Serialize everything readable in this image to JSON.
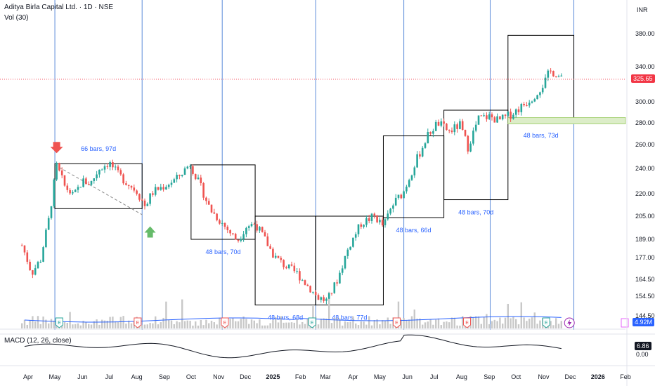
{
  "header": {
    "symbol_line": "Aditya Birla Capital Ltd. · 1D · NSE",
    "vol_line": "Vol (30)",
    "macd_line": "MACD (12, 26, close)",
    "currency": "INR"
  },
  "tags": {
    "last_price": "325.65",
    "volume": "4.92M",
    "macd": "6.86",
    "macd_zero": "0.00"
  },
  "colors": {
    "up": "#26a69a",
    "down": "#ef5350",
    "vline": "#5b8bd9",
    "box": "#000000",
    "price_tag": "#f23645",
    "vol_tag": "#2962ff",
    "zone": "#dcedc8"
  },
  "icons": [
    "down-arrow-red",
    "up-arrow-green",
    "earnings-markers",
    "lightning-icon"
  ],
  "chart_data": {
    "type": "candlestick",
    "price_axis_ticks": [
      "380.00",
      "340.00",
      "300.00",
      "280.00",
      "260.00",
      "240.00",
      "220.00",
      "205.00",
      "189.00",
      "177.00",
      "164.50",
      "154.50",
      "144.50"
    ],
    "x_axis_ticks": [
      "Apr",
      "May",
      "Jun",
      "Jul",
      "Aug",
      "Sep",
      "Oct",
      "Nov",
      "Dec",
      "2025",
      "Feb",
      "Mar",
      "Apr",
      "May",
      "Jun",
      "Jul",
      "Aug",
      "Sep",
      "Oct",
      "Nov",
      "Dec",
      "2026",
      "Feb"
    ],
    "last_price": 325.65,
    "close_series": [
      {
        "date": "2024-03-25",
        "close": 185
      },
      {
        "date": "2024-04-05",
        "close": 168
      },
      {
        "date": "2024-04-15",
        "close": 176
      },
      {
        "date": "2024-04-25",
        "close": 205
      },
      {
        "date": "2024-05-03",
        "close": 242
      },
      {
        "date": "2024-05-12",
        "close": 226
      },
      {
        "date": "2024-05-22",
        "close": 218
      },
      {
        "date": "2024-06-01",
        "close": 230
      },
      {
        "date": "2024-06-10",
        "close": 228
      },
      {
        "date": "2024-06-20",
        "close": 240
      },
      {
        "date": "2024-07-01",
        "close": 245
      },
      {
        "date": "2024-07-10",
        "close": 236
      },
      {
        "date": "2024-07-22",
        "close": 228
      },
      {
        "date": "2024-08-01",
        "close": 222
      },
      {
        "date": "2024-08-10",
        "close": 212
      },
      {
        "date": "2024-08-20",
        "close": 222
      },
      {
        "date": "2024-09-01",
        "close": 226
      },
      {
        "date": "2024-09-15",
        "close": 232
      },
      {
        "date": "2024-09-30",
        "close": 244
      },
      {
        "date": "2024-10-10",
        "close": 228
      },
      {
        "date": "2024-10-22",
        "close": 210
      },
      {
        "date": "2024-11-01",
        "close": 203
      },
      {
        "date": "2024-11-12",
        "close": 195
      },
      {
        "date": "2024-11-22",
        "close": 188
      },
      {
        "date": "2024-12-02",
        "close": 198
      },
      {
        "date": "2024-12-12",
        "close": 200
      },
      {
        "date": "2024-12-22",
        "close": 190
      },
      {
        "date": "2025-01-02",
        "close": 178
      },
      {
        "date": "2025-01-15",
        "close": 172
      },
      {
        "date": "2025-01-28",
        "close": 168
      },
      {
        "date": "2025-02-10",
        "close": 160
      },
      {
        "date": "2025-02-20",
        "close": 154
      },
      {
        "date": "2025-03-03",
        "close": 152
      },
      {
        "date": "2025-03-15",
        "close": 165
      },
      {
        "date": "2025-03-28",
        "close": 185
      },
      {
        "date": "2025-04-10",
        "close": 200
      },
      {
        "date": "2025-04-25",
        "close": 205
      },
      {
        "date": "2025-05-05",
        "close": 198
      },
      {
        "date": "2025-05-15",
        "close": 212
      },
      {
        "date": "2025-05-28",
        "close": 222
      },
      {
        "date": "2025-06-10",
        "close": 245
      },
      {
        "date": "2025-06-25",
        "close": 270
      },
      {
        "date": "2025-07-05",
        "close": 280
      },
      {
        "date": "2025-07-18",
        "close": 272
      },
      {
        "date": "2025-07-30",
        "close": 278
      },
      {
        "date": "2025-08-08",
        "close": 258
      },
      {
        "date": "2025-08-20",
        "close": 284
      },
      {
        "date": "2025-09-01",
        "close": 286
      },
      {
        "date": "2025-09-12",
        "close": 282
      },
      {
        "date": "2025-09-25",
        "close": 288
      },
      {
        "date": "2025-10-08",
        "close": 296
      },
      {
        "date": "2025-10-20",
        "close": 305
      },
      {
        "date": "2025-11-01",
        "close": 320
      },
      {
        "date": "2025-11-08",
        "close": 335
      },
      {
        "date": "2025-11-15",
        "close": 332
      },
      {
        "date": "2025-11-21",
        "close": 325.65
      }
    ],
    "boxes": [
      {
        "from": "2024-05-01",
        "to": "2024-08-07",
        "low": 210,
        "high": 244,
        "label": "66 bars, 97d"
      },
      {
        "from": "2024-10-01",
        "to": "2024-12-12",
        "low": 189,
        "high": 243,
        "label": "48 bars, 70d"
      },
      {
        "from": "2024-12-12",
        "to": "2025-02-18",
        "low": 150,
        "high": 205,
        "label": "48 bars, 68d"
      },
      {
        "from": "2025-02-18",
        "to": "2025-05-05",
        "low": 150,
        "high": 205,
        "label": "48 bars, 77d"
      },
      {
        "from": "2025-05-05",
        "to": "2025-07-12",
        "low": 204,
        "high": 268,
        "label": "48 bars, 66d"
      },
      {
        "from": "2025-07-12",
        "to": "2025-09-22",
        "low": 216,
        "high": 292,
        "label": "48 bars, 70d"
      },
      {
        "from": "2025-09-22",
        "to": "2025-12-05",
        "low": 280,
        "high": 378,
        "label": "48 bars, 73d"
      }
    ],
    "volume_last": "4.92M",
    "macd_last": 6.86,
    "grid": false,
    "legend": "top-left"
  }
}
